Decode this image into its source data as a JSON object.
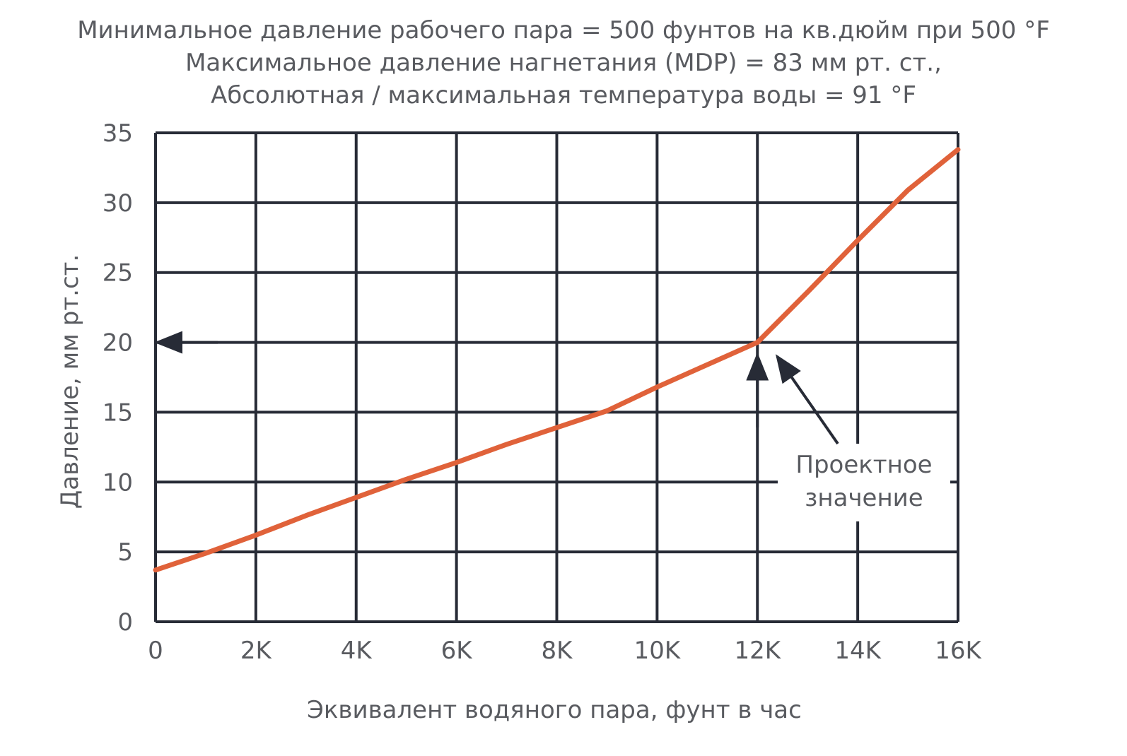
{
  "title_lines": [
    "Минимальное давление рабочего пара = 500 фунтов на кв.дюйм при 500 °F",
    "Максимальное давление нагнетания (MDP) = 83 мм рт. ст.,",
    "Абсолютная / максимальная температура воды = 91 °F"
  ],
  "chart_data": {
    "type": "line",
    "xlabel": "Эквивалент водяного пара, фунт в час",
    "ylabel": "Давление, мм рт.ст.",
    "xlim": [
      0,
      16000
    ],
    "ylim": [
      0,
      35
    ],
    "x_ticks": [
      0,
      2000,
      4000,
      6000,
      8000,
      10000,
      12000,
      14000,
      16000
    ],
    "x_tick_labels": [
      "0",
      "2K",
      "4K",
      "6K",
      "8K",
      "10K",
      "12K",
      "14K",
      "16K"
    ],
    "y_ticks": [
      0,
      5,
      10,
      15,
      20,
      25,
      30,
      35
    ],
    "y_tick_labels": [
      "0",
      "5",
      "10",
      "15",
      "20",
      "25",
      "30",
      "35"
    ],
    "grid": true,
    "series": [
      {
        "color": "#e0623a",
        "x": [
          0,
          1000,
          2000,
          3000,
          4000,
          5000,
          6000,
          7000,
          8000,
          9000,
          10000,
          11000,
          12000,
          13000,
          14000,
          15000,
          16000
        ],
        "y": [
          3.7,
          4.9,
          6.2,
          7.6,
          8.9,
          10.2,
          11.4,
          12.7,
          13.9,
          15.1,
          16.8,
          18.4,
          20.0,
          23.6,
          27.3,
          30.9,
          33.8
        ]
      }
    ],
    "annotations": {
      "design_label": [
        "Проектное",
        "значение"
      ],
      "design_point": {
        "x": 12000,
        "y": 20
      }
    },
    "colors": {
      "grid": "#272b36",
      "line": "#e0623a",
      "text": "#595b60"
    }
  }
}
